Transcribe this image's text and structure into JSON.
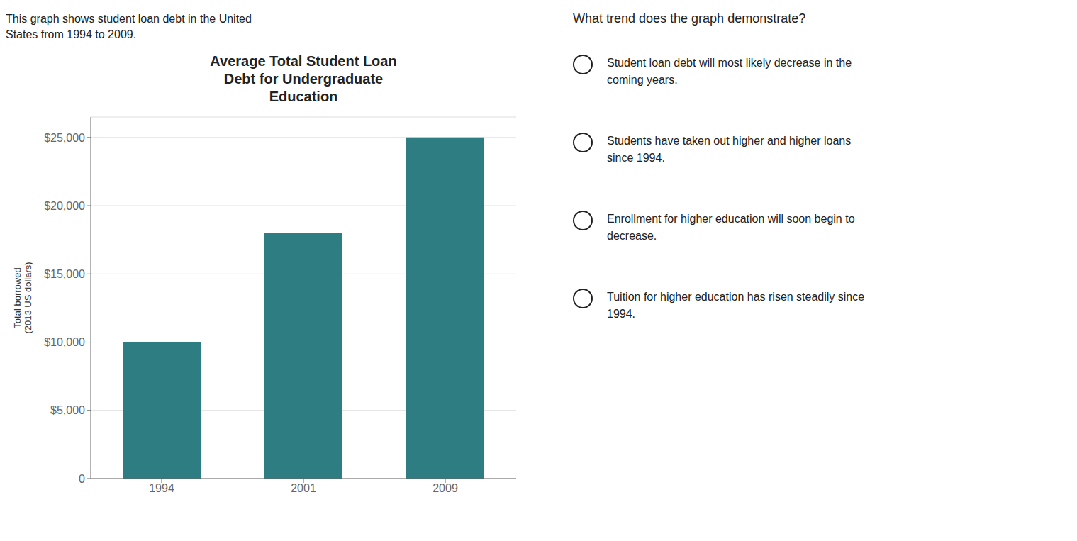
{
  "chart_data": {
    "type": "bar",
    "title": "Average Total Student Loan\nDebt for Undergraduate\nEducation",
    "categories": [
      "1994",
      "2001",
      "2009"
    ],
    "values": [
      10000,
      18000,
      25000
    ],
    "color": "#2e7d82",
    "ylabel": "Total borrowed\n(2013 US dollars)",
    "ylim": [
      0,
      26500
    ],
    "yticks": [
      0,
      {
        "value": 5000,
        "label": "$5,000"
      },
      {
        "value": 10000,
        "label": "$10,000"
      },
      {
        "value": 15000,
        "label": "$15,000"
      },
      {
        "value": 20000,
        "label": "$20,000"
      },
      {
        "value": 25000,
        "label": "$25,000"
      }
    ],
    "grid": true,
    "annotations": {
      "intro": [
        "This graph shows student loan debt in the United",
        "States from 1994 to 2009."
      ],
      "question": "What trend does the graph demonstrate?",
      "options": [
        "Student loan debt will most likely decrease in the\ncoming years.",
        "Students have taken out higher and higher loans\nsince 1994.",
        "Enrollment for higher education will soon begin to\ndecrease.",
        "Tuition for higher education has risen steadily since\n1994."
      ]
    }
  }
}
